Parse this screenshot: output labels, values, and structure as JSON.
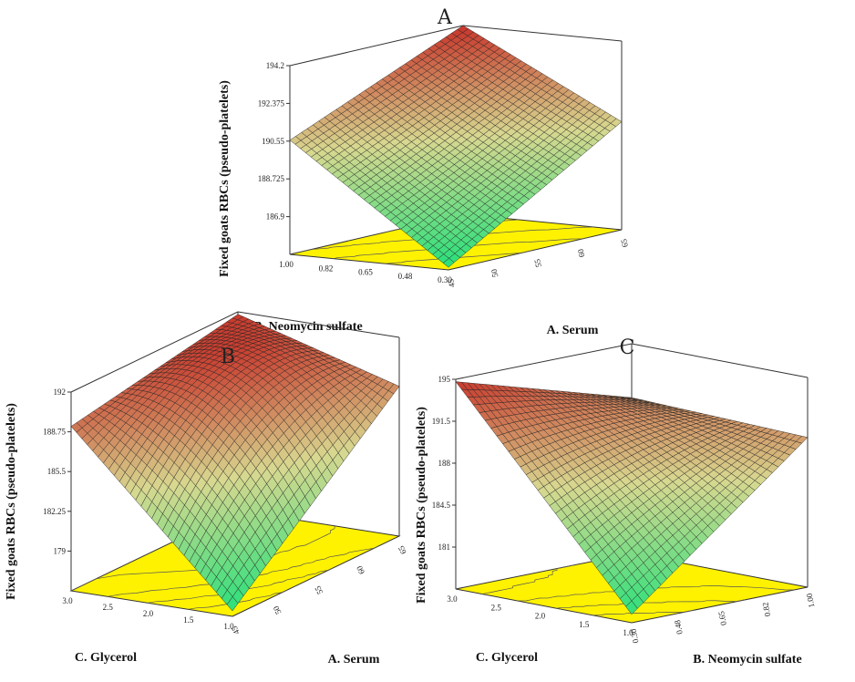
{
  "chart_data": [
    {
      "type": "surface3d",
      "panel": "A",
      "zlabel": "Fixed goats RBCs (pseudo-platelets)",
      "xlabel": "A. Serum",
      "ylabel": "B. Neomycin sulfate",
      "x_ticks": [
        "45",
        "50",
        "55",
        "60",
        "65"
      ],
      "y_ticks": [
        "0.30",
        "0.48",
        "0.65",
        "0.82",
        "1.00"
      ],
      "z_ticks": [
        "186.9",
        "188.725",
        "190.55",
        "192.375",
        "194.2"
      ],
      "xlim": [
        45,
        65
      ],
      "ylim": [
        0.3,
        1.0
      ],
      "zlim": [
        185.075,
        194.2
      ],
      "corner_values": {
        "x_low_y_low": 185.2,
        "x_high_y_low": 190.3,
        "x_low_y_high": 190.6,
        "x_high_y_high": 194.2
      },
      "center_value": 190.0
    },
    {
      "type": "surface3d",
      "panel": "B",
      "zlabel": "Fixed goats RBCs (pseudo-platelets)",
      "xlabel": "A. Serum",
      "ylabel": "C. Glycerol",
      "x_ticks": [
        "45",
        "50",
        "55",
        "60",
        "65"
      ],
      "y_ticks": [
        "1.0",
        "1.5",
        "2.0",
        "2.5",
        "3.0"
      ],
      "z_ticks": [
        "179",
        "182.25",
        "185.5",
        "188.75",
        "192"
      ],
      "xlim": [
        45,
        65
      ],
      "ylim": [
        1.0,
        3.0
      ],
      "zlim": [
        175.75,
        192
      ],
      "corner_values": {
        "x_low_y_low": 176.2,
        "x_high_y_low": 188.0,
        "x_low_y_high": 189.2,
        "x_high_y_high": 191.8
      },
      "center_value": 189.6
    },
    {
      "type": "surface3d",
      "panel": "C",
      "zlabel": "Fixed goats RBCs (pseudo-platelets)",
      "xlabel": "B. Neomycin sulfate",
      "ylabel": "C. Glycerol",
      "x_ticks": [
        "0.30",
        "0.48",
        "0.65",
        "0.82",
        "1.00"
      ],
      "y_ticks": [
        "1.0",
        "1.5",
        "2.0",
        "2.5",
        "3.0"
      ],
      "z_ticks": [
        "181",
        "184.5",
        "188",
        "191.5",
        "195"
      ],
      "xlim": [
        0.3,
        1.0
      ],
      "ylim": [
        1.0,
        3.0
      ],
      "zlim": [
        177.5,
        195
      ],
      "corner_values": {
        "x_low_y_low": 178.2,
        "x_high_y_low": 190.0,
        "x_low_y_high": 194.8,
        "x_high_y_high": 190.5
      },
      "center_value": 189.2
    }
  ],
  "colors": {
    "floor": "#fff200",
    "mesh": "#222222",
    "low": "#22e07a",
    "mid": "#d8d890",
    "high": "#c8342a"
  }
}
